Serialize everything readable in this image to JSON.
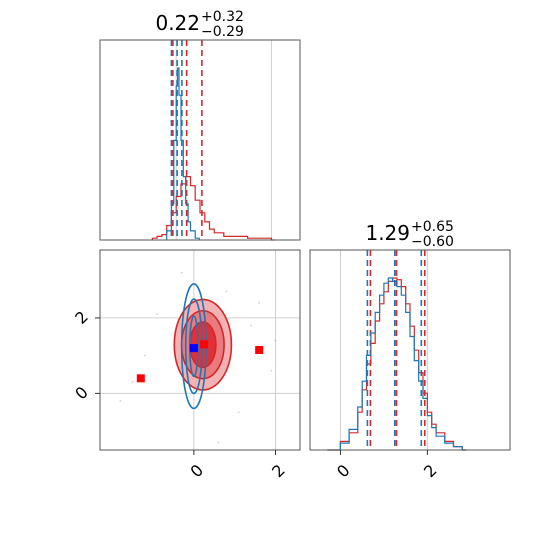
{
  "chart_data": [
    {
      "type": "line",
      "panel": "top-left marginal histogram (parameter 1)",
      "title": {
        "value": "0.22",
        "plus": "+0.32",
        "minus": "−0.29"
      },
      "xlim": [
        -1.6,
        2.6
      ],
      "grid": true,
      "series": [
        {
          "color": "#d62728",
          "x": [
            -0.5,
            -0.4,
            -0.3,
            -0.2,
            -0.1,
            0.0,
            0.1,
            0.2,
            0.3,
            0.4,
            0.5,
            0.6,
            0.7,
            0.8,
            1.0,
            1.2,
            1.5,
            1.8,
            2.0
          ],
          "values": [
            0.01,
            0.02,
            0.03,
            0.08,
            0.15,
            0.24,
            0.31,
            0.35,
            0.3,
            0.22,
            0.15,
            0.1,
            0.06,
            0.04,
            0.02,
            0.02,
            0.01,
            0.01,
            0.0
          ],
          "vlines": [
            -0.07,
            0.22,
            0.54
          ]
        },
        {
          "color": "#1f77b4",
          "x": [
            -0.2,
            -0.1,
            -0.05,
            0.0,
            0.03,
            0.06,
            0.1,
            0.15,
            0.2,
            0.25,
            0.3,
            0.4
          ],
          "values": [
            0.05,
            0.2,
            0.55,
            0.85,
            0.95,
            0.8,
            0.55,
            0.35,
            0.2,
            0.1,
            0.05,
            0.01
          ],
          "vlines": [
            -0.1,
            0.02,
            0.12
          ]
        }
      ]
    },
    {
      "type": "line",
      "panel": "bottom-right marginal histogram (parameter 2)",
      "title": {
        "value": "1.29",
        "plus": "+0.65",
        "minus": "−0.60"
      },
      "xlim": [
        -0.7,
        3.9
      ],
      "xticks": [
        0,
        2
      ],
      "xtick_labels": [
        "0",
        "2"
      ],
      "grid": true,
      "series": [
        {
          "color": "#d62728",
          "x": [
            -0.3,
            0.0,
            0.2,
            0.4,
            0.5,
            0.6,
            0.7,
            0.8,
            0.9,
            1.0,
            1.1,
            1.2,
            1.3,
            1.4,
            1.5,
            1.6,
            1.7,
            1.8,
            1.9,
            2.0,
            2.1,
            2.2,
            2.4,
            2.6,
            2.8
          ],
          "values": [
            0.0,
            0.05,
            0.1,
            0.22,
            0.35,
            0.5,
            0.62,
            0.75,
            0.85,
            0.92,
            0.98,
            1.0,
            0.99,
            0.95,
            0.85,
            0.72,
            0.58,
            0.45,
            0.33,
            0.22,
            0.15,
            0.1,
            0.05,
            0.02,
            0.0
          ],
          "vlines": [
            0.69,
            1.29,
            1.94
          ]
        },
        {
          "color": "#1f77b4",
          "x": [
            -0.3,
            0.0,
            0.2,
            0.4,
            0.5,
            0.6,
            0.7,
            0.8,
            0.9,
            1.0,
            1.1,
            1.2,
            1.3,
            1.4,
            1.5,
            1.6,
            1.7,
            1.8,
            1.9,
            2.0,
            2.1,
            2.2,
            2.4,
            2.6,
            2.8
          ],
          "values": [
            0.0,
            0.04,
            0.12,
            0.25,
            0.4,
            0.55,
            0.68,
            0.8,
            0.9,
            0.97,
            1.0,
            0.98,
            0.95,
            0.9,
            0.8,
            0.66,
            0.52,
            0.4,
            0.3,
            0.2,
            0.13,
            0.08,
            0.04,
            0.02,
            0.0
          ],
          "vlines": [
            0.62,
            1.25,
            1.86
          ]
        }
      ]
    },
    {
      "type": "scatter",
      "panel": "bottom-left 2D joint distribution",
      "xlim": [
        -2.3,
        2.6
      ],
      "ylim": [
        -1.5,
        3.8
      ],
      "xticks": [
        0,
        2
      ],
      "xtick_labels": [
        "0",
        "2"
      ],
      "yticks": [
        0,
        2
      ],
      "ytick_labels": [
        "0",
        "2"
      ],
      "grid": true,
      "series": [
        {
          "color": "#d62728",
          "style": "filled density contours",
          "center": [
            0.22,
            1.29
          ],
          "contours": [
            {
              "half_widths": [
                0.7,
                1.2
              ],
              "fill": "#f4b2b5"
            },
            {
              "half_widths": [
                0.52,
                0.9
              ],
              "fill": "#eb7a7f"
            },
            {
              "half_widths": [
                0.32,
                0.6
              ],
              "fill": "#e03038"
            }
          ],
          "markers": [
            [
              -1.3,
              0.4
            ],
            [
              0.25,
              1.3
            ],
            [
              1.6,
              1.15
            ]
          ],
          "marker_shape": "square"
        },
        {
          "color": "#1f77b4",
          "style": "contour lines",
          "center": [
            0.0,
            1.25
          ],
          "contours": [
            {
              "half_widths": [
                0.3,
                1.65
              ]
            },
            {
              "half_widths": [
                0.2,
                1.25
              ]
            },
            {
              "half_widths": [
                0.1,
                0.8
              ]
            }
          ],
          "markers": [
            [
              0.0,
              1.2
            ]
          ],
          "marker_shape": "square"
        }
      ]
    }
  ]
}
